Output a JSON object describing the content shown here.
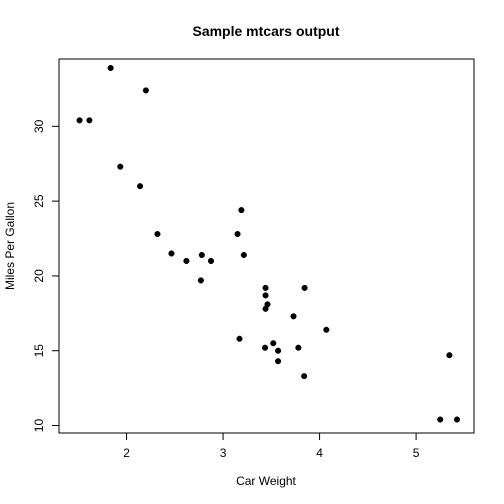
{
  "chart_data": {
    "type": "scatter",
    "title": "Sample mtcars output",
    "xlabel": "Car Weight",
    "ylabel": "Miles Per Gallon",
    "xlim": [
      1.3,
      5.6
    ],
    "ylim": [
      9.5,
      34.5
    ],
    "x_ticks": [
      2,
      3,
      4,
      5
    ],
    "y_ticks": [
      10,
      15,
      20,
      25,
      30
    ],
    "grid": false,
    "legend": "none",
    "point_color": "#000000",
    "points": [
      {
        "x": 2.62,
        "y": 21.0
      },
      {
        "x": 2.875,
        "y": 21.0
      },
      {
        "x": 2.32,
        "y": 22.8
      },
      {
        "x": 3.215,
        "y": 21.4
      },
      {
        "x": 3.44,
        "y": 18.7
      },
      {
        "x": 3.46,
        "y": 18.1
      },
      {
        "x": 3.57,
        "y": 14.3
      },
      {
        "x": 3.19,
        "y": 24.4
      },
      {
        "x": 3.15,
        "y": 22.8
      },
      {
        "x": 3.44,
        "y": 19.2
      },
      {
        "x": 3.44,
        "y": 17.8
      },
      {
        "x": 4.07,
        "y": 16.4
      },
      {
        "x": 3.73,
        "y": 17.3
      },
      {
        "x": 3.78,
        "y": 15.2
      },
      {
        "x": 5.25,
        "y": 10.4
      },
      {
        "x": 5.424,
        "y": 10.4
      },
      {
        "x": 5.345,
        "y": 14.7
      },
      {
        "x": 2.2,
        "y": 32.4
      },
      {
        "x": 1.615,
        "y": 30.4
      },
      {
        "x": 1.835,
        "y": 33.9
      },
      {
        "x": 2.465,
        "y": 21.5
      },
      {
        "x": 3.52,
        "y": 15.5
      },
      {
        "x": 3.435,
        "y": 15.2
      },
      {
        "x": 3.84,
        "y": 13.3
      },
      {
        "x": 3.845,
        "y": 19.2
      },
      {
        "x": 1.935,
        "y": 27.3
      },
      {
        "x": 2.14,
        "y": 26.0
      },
      {
        "x": 1.513,
        "y": 30.4
      },
      {
        "x": 3.17,
        "y": 15.8
      },
      {
        "x": 2.77,
        "y": 19.7
      },
      {
        "x": 3.57,
        "y": 15.0
      },
      {
        "x": 2.78,
        "y": 21.4
      }
    ]
  }
}
